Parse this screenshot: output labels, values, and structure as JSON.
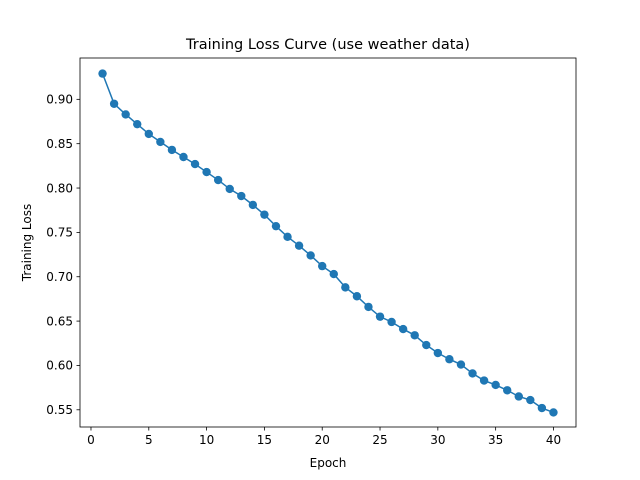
{
  "chart_data": {
    "type": "line",
    "title": "Training Loss Curve (use weather data)",
    "xlabel": "Epoch",
    "ylabel": "Training Loss",
    "xlim": [
      -0.95,
      41.95
    ],
    "ylim": [
      0.5306,
      0.9466
    ],
    "xticks": [
      0,
      5,
      10,
      15,
      20,
      25,
      30,
      35,
      40
    ],
    "yticks": [
      0.55,
      0.6,
      0.65,
      0.7,
      0.75,
      0.8,
      0.85,
      0.9
    ],
    "grid": false,
    "marker": "circle",
    "colors": {
      "series": "#1f77b4",
      "axes": "#000000",
      "background": "#ffffff"
    },
    "series": [
      {
        "x": [
          1,
          2,
          3,
          4,
          5,
          6,
          7,
          8,
          9,
          10,
          11,
          12,
          13,
          14,
          15,
          16,
          17,
          18,
          19,
          20,
          21,
          22,
          23,
          24,
          25,
          26,
          27,
          28,
          29,
          30,
          31,
          32,
          33,
          34,
          35,
          36,
          37,
          38,
          39,
          40
        ],
        "values": [
          0.929,
          0.895,
          0.883,
          0.872,
          0.861,
          0.852,
          0.843,
          0.835,
          0.827,
          0.818,
          0.809,
          0.799,
          0.791,
          0.781,
          0.77,
          0.757,
          0.745,
          0.735,
          0.724,
          0.712,
          0.703,
          0.688,
          0.678,
          0.666,
          0.655,
          0.649,
          0.641,
          0.634,
          0.623,
          0.614,
          0.607,
          0.601,
          0.591,
          0.583,
          0.578,
          0.572,
          0.565,
          0.561,
          0.552,
          0.547
        ]
      }
    ]
  }
}
